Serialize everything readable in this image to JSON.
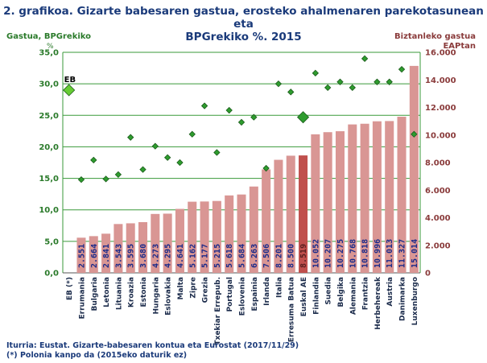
{
  "title_line1": "2. grafikoa. Gizarte babesaren gastua, erosteko ahalmenaren parekotasunean eta",
  "title_line2": "BPGrekiko %. 2015",
  "left_axis_label_line1": "Gastua, BPGrekiko",
  "left_axis_label_line2": "%",
  "right_axis_label_line1": "Biztanleko gastua",
  "right_axis_label_line2": "EAPtan",
  "footer_line1": "Iturria: Eustat. Gizarte-babesaren kontua eta Eurostat (2017/11/29)",
  "footer_line2": "(*) Polonia kanpo da (2015eko daturik ez)",
  "eb_marker_label": "EB",
  "colors": {
    "bar": "#d99694",
    "bar_highlight": "#c0504d",
    "diamond": "#2e9c2e",
    "diamond_highlight": "#66cc33",
    "grid": "#3a9a3a",
    "left_axis_text": "#2a7a2a",
    "right_axis_text": "#8a3b3b",
    "bar_label": "#1a2a8a"
  },
  "chart_data": {
    "type": "bar+scatter",
    "categories": [
      "EB (*)",
      "Errumania",
      "Bulgaria",
      "Letonia",
      "Lituania",
      "Kroazia",
      "Estonia",
      "Hungaria",
      "Eslovakia",
      "Malta",
      "Zipre",
      "Grezia",
      "Txekiar Errepub.",
      "Portugal",
      "Eslovenia",
      "Espainia",
      "Irlanda",
      "Italia",
      "Erresuma Batua",
      "Euskal AE",
      "Finlandia",
      "Suedia",
      "Belgika",
      "Alemania",
      "Frantzia",
      "Herbehereak",
      "Austria",
      "Danimarka",
      "Luxenburgo"
    ],
    "series": [
      {
        "name": "Biztanleko gastua EAPtan",
        "axis": "right",
        "kind": "bar",
        "values": [
          null,
          2551,
          2664,
          2841,
          3543,
          3595,
          3680,
          4273,
          4295,
          4641,
          5162,
          5177,
          5215,
          5618,
          5684,
          6263,
          7506,
          8201,
          8500,
          8519,
          10052,
          10207,
          10275,
          10768,
          10818,
          10996,
          11013,
          11327,
          15014
        ],
        "labels": [
          null,
          "2.551",
          "2.664",
          "2.841",
          "3.543",
          "3.595",
          "3.680",
          "4.273",
          "4.295",
          "4.641",
          "5.162",
          "5.177",
          "5.215",
          "5.618",
          "5.684",
          "6.263",
          "7.506",
          "8.201",
          "8.500",
          "8.519",
          "10.052",
          "10.207",
          "10.275",
          "10.768",
          "10.818",
          "10.996",
          "11.013",
          "11.327",
          "15.014"
        ],
        "highlight_index": 19
      },
      {
        "name": "Gastua, BPGrekiko %",
        "axis": "left",
        "kind": "diamond",
        "values": [
          29.0,
          14.8,
          17.9,
          14.9,
          15.6,
          21.5,
          16.4,
          20.1,
          18.3,
          17.5,
          22.0,
          26.5,
          19.1,
          25.8,
          23.9,
          24.7,
          16.6,
          30.0,
          28.7,
          24.7,
          31.7,
          29.4,
          30.3,
          29.4,
          34.0,
          30.3,
          30.3,
          32.3,
          22.0
        ],
        "highlight_indices": [
          0,
          19
        ]
      }
    ],
    "left_axis": {
      "min": 0,
      "max": 35,
      "step": 5,
      "tick_labels": [
        "0,0",
        "5,0",
        "10,0",
        "15,0",
        "20,0",
        "25,0",
        "30,0",
        "35,0"
      ]
    },
    "right_axis": {
      "min": 0,
      "max": 16000,
      "step": 2000,
      "tick_labels": [
        "0",
        "2.000",
        "4.000",
        "6.000",
        "8.000",
        "10.000",
        "12.000",
        "14.000",
        "16.000"
      ]
    }
  }
}
